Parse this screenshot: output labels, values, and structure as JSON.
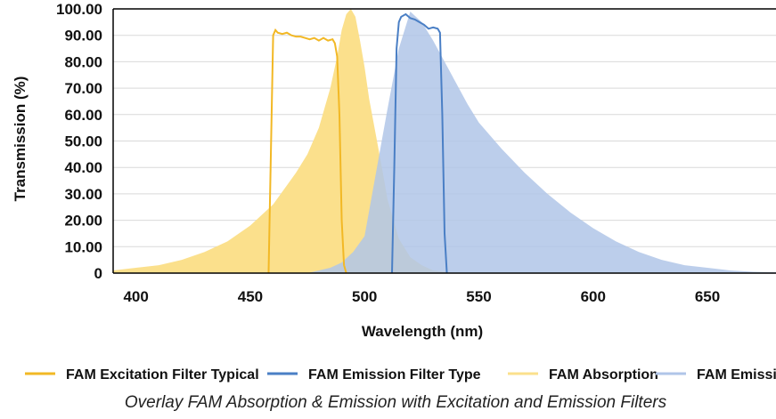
{
  "chart_data": {
    "type": "area",
    "caption": "Overlay FAM Absorption & Emission with Excitation and Emission Filters",
    "xlabel": "Wavelength (nm)",
    "ylabel": "Transmission (%)",
    "xlim": [
      390,
      680
    ],
    "ylim": [
      0,
      100
    ],
    "x_ticks": [
      "400",
      "450",
      "500",
      "550",
      "600",
      "650"
    ],
    "y_ticks": [
      "0",
      "10.00",
      "20.00",
      "30.00",
      "40.00",
      "50.00",
      "60.00",
      "70.00",
      "80.00",
      "90.00",
      "100.00"
    ],
    "grid": true,
    "legend_position": "bottom",
    "series": [
      {
        "name": "FAM Excitation Filter Typical",
        "kind": "line",
        "color": "#f2b825",
        "x": [
          458,
          459,
          460,
          461,
          462,
          464,
          466,
          468,
          470,
          472,
          474,
          476,
          478,
          480,
          482,
          484,
          486,
          487,
          488,
          489,
          490,
          491,
          492
        ],
        "y": [
          0,
          45,
          90,
          92,
          91,
          90.5,
          91,
          90,
          89.5,
          89.5,
          89,
          88.5,
          89,
          88,
          89,
          88,
          88.5,
          87,
          82,
          60,
          20,
          3,
          0
        ]
      },
      {
        "name": "FAM Emission Filter Type",
        "kind": "line",
        "color": "#4a7fc5",
        "x": [
          512,
          513,
          514,
          515,
          516,
          518,
          520,
          522,
          524,
          526,
          528,
          530,
          532,
          533,
          534,
          535,
          536
        ],
        "y": [
          0,
          40,
          85,
          95,
          97,
          98,
          96.5,
          96,
          95,
          94,
          92.5,
          93,
          92.5,
          91,
          60,
          15,
          0
        ]
      },
      {
        "name": "FAM Absorption",
        "kind": "area",
        "color": "#fbe08c",
        "x": [
          390,
          400,
          410,
          420,
          430,
          440,
          450,
          455,
          460,
          465,
          470,
          475,
          480,
          485,
          488,
          490,
          492,
          494,
          496,
          498,
          500,
          502,
          505,
          508,
          510,
          515,
          520,
          525,
          530,
          540
        ],
        "y": [
          1,
          2,
          3,
          5,
          8,
          12,
          18,
          22,
          26,
          32,
          38,
          45,
          55,
          70,
          82,
          92,
          98,
          100,
          97,
          88,
          78,
          66,
          52,
          38,
          28,
          13,
          6,
          3,
          1,
          0
        ]
      },
      {
        "name": "FAM Emission",
        "kind": "area",
        "color": "#b0c5e8",
        "x": [
          475,
          480,
          485,
          490,
          495,
          500,
          505,
          510,
          515,
          520,
          525,
          530,
          535,
          540,
          545,
          550,
          560,
          570,
          580,
          590,
          600,
          610,
          620,
          630,
          640,
          650,
          660,
          670,
          680
        ],
        "y": [
          0,
          1,
          2,
          4,
          8,
          14,
          38,
          62,
          85,
          99,
          95,
          88,
          80,
          72,
          64,
          57,
          47,
          38,
          30,
          23,
          17,
          12,
          8,
          5,
          3,
          2,
          1,
          0.5,
          0.3
        ]
      }
    ]
  }
}
